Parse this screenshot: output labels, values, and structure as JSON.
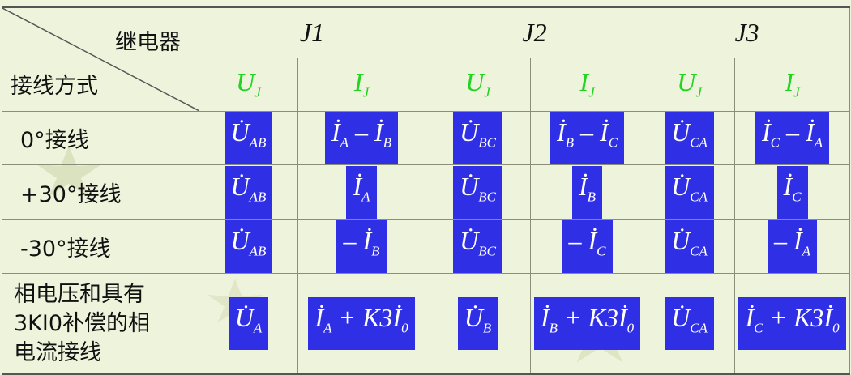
{
  "header": {
    "relay_label": "继电器",
    "connection_label": "接线方式",
    "relays": [
      "J1",
      "J2",
      "J3"
    ],
    "sub_headers": [
      {
        "symbol": "U",
        "sub": "J"
      },
      {
        "symbol": "I",
        "sub": "J"
      },
      {
        "symbol": "U",
        "sub": "J"
      },
      {
        "symbol": "I",
        "sub": "J"
      },
      {
        "symbol": "U",
        "sub": "J"
      },
      {
        "symbol": "I",
        "sub": "J"
      }
    ]
  },
  "rows": [
    {
      "label": "0°接线",
      "cells": [
        [
          {
            "t": "U̇"
          },
          {
            "s": "AB"
          }
        ],
        [
          {
            "t": "İ"
          },
          {
            "s": "A"
          },
          {
            "t": " – İ"
          },
          {
            "s": "B"
          }
        ],
        [
          {
            "t": "U̇"
          },
          {
            "s": "BC"
          }
        ],
        [
          {
            "t": "İ"
          },
          {
            "s": "B"
          },
          {
            "t": " – İ"
          },
          {
            "s": "C"
          }
        ],
        [
          {
            "t": "U̇"
          },
          {
            "s": "CA"
          }
        ],
        [
          {
            "t": "İ"
          },
          {
            "s": "C"
          },
          {
            "t": " – İ"
          },
          {
            "s": "A"
          }
        ]
      ]
    },
    {
      "label": "+30°接线",
      "cells": [
        [
          {
            "t": "U̇"
          },
          {
            "s": "AB"
          }
        ],
        [
          {
            "t": "İ"
          },
          {
            "s": "A"
          }
        ],
        [
          {
            "t": "U̇"
          },
          {
            "s": "BC"
          }
        ],
        [
          {
            "t": "İ"
          },
          {
            "s": "B"
          }
        ],
        [
          {
            "t": "U̇"
          },
          {
            "s": "CA"
          }
        ],
        [
          {
            "t": "İ"
          },
          {
            "s": "C"
          }
        ]
      ]
    },
    {
      "label": "-30°接线",
      "cells": [
        [
          {
            "t": "U̇"
          },
          {
            "s": "AB"
          }
        ],
        [
          {
            "t": "– İ"
          },
          {
            "s": "B"
          }
        ],
        [
          {
            "t": "U̇"
          },
          {
            "s": "BC"
          }
        ],
        [
          {
            "t": "– İ"
          },
          {
            "s": "C"
          }
        ],
        [
          {
            "t": "U̇"
          },
          {
            "s": "CA"
          }
        ],
        [
          {
            "t": "– İ"
          },
          {
            "s": "A"
          }
        ]
      ]
    },
    {
      "label": "相电压和具有3KI0补偿的相电流接线",
      "label_lines": [
        "相电压和具有",
        "3KI0补偿的相",
        "电流接线"
      ],
      "cells": [
        [
          {
            "t": "U̇"
          },
          {
            "s": "A"
          }
        ],
        [
          {
            "t": "İ"
          },
          {
            "s": "A"
          },
          {
            "t": " + K3İ"
          },
          {
            "s": "0"
          }
        ],
        [
          {
            "t": "U̇"
          },
          {
            "s": "B"
          }
        ],
        [
          {
            "t": "İ"
          },
          {
            "s": "B"
          },
          {
            "t": " + K3İ"
          },
          {
            "s": "0"
          }
        ],
        [
          {
            "t": "U̇"
          },
          {
            "s": "CA"
          }
        ],
        [
          {
            "t": "İ"
          },
          {
            "s": "C"
          },
          {
            "t": " + K3İ"
          },
          {
            "s": "0"
          }
        ]
      ]
    }
  ],
  "colors": {
    "cell_bg": "#2f2fe6",
    "cell_text": "#ffffff",
    "sub_header_text": "#22d322",
    "background": "#eef3dc"
  }
}
